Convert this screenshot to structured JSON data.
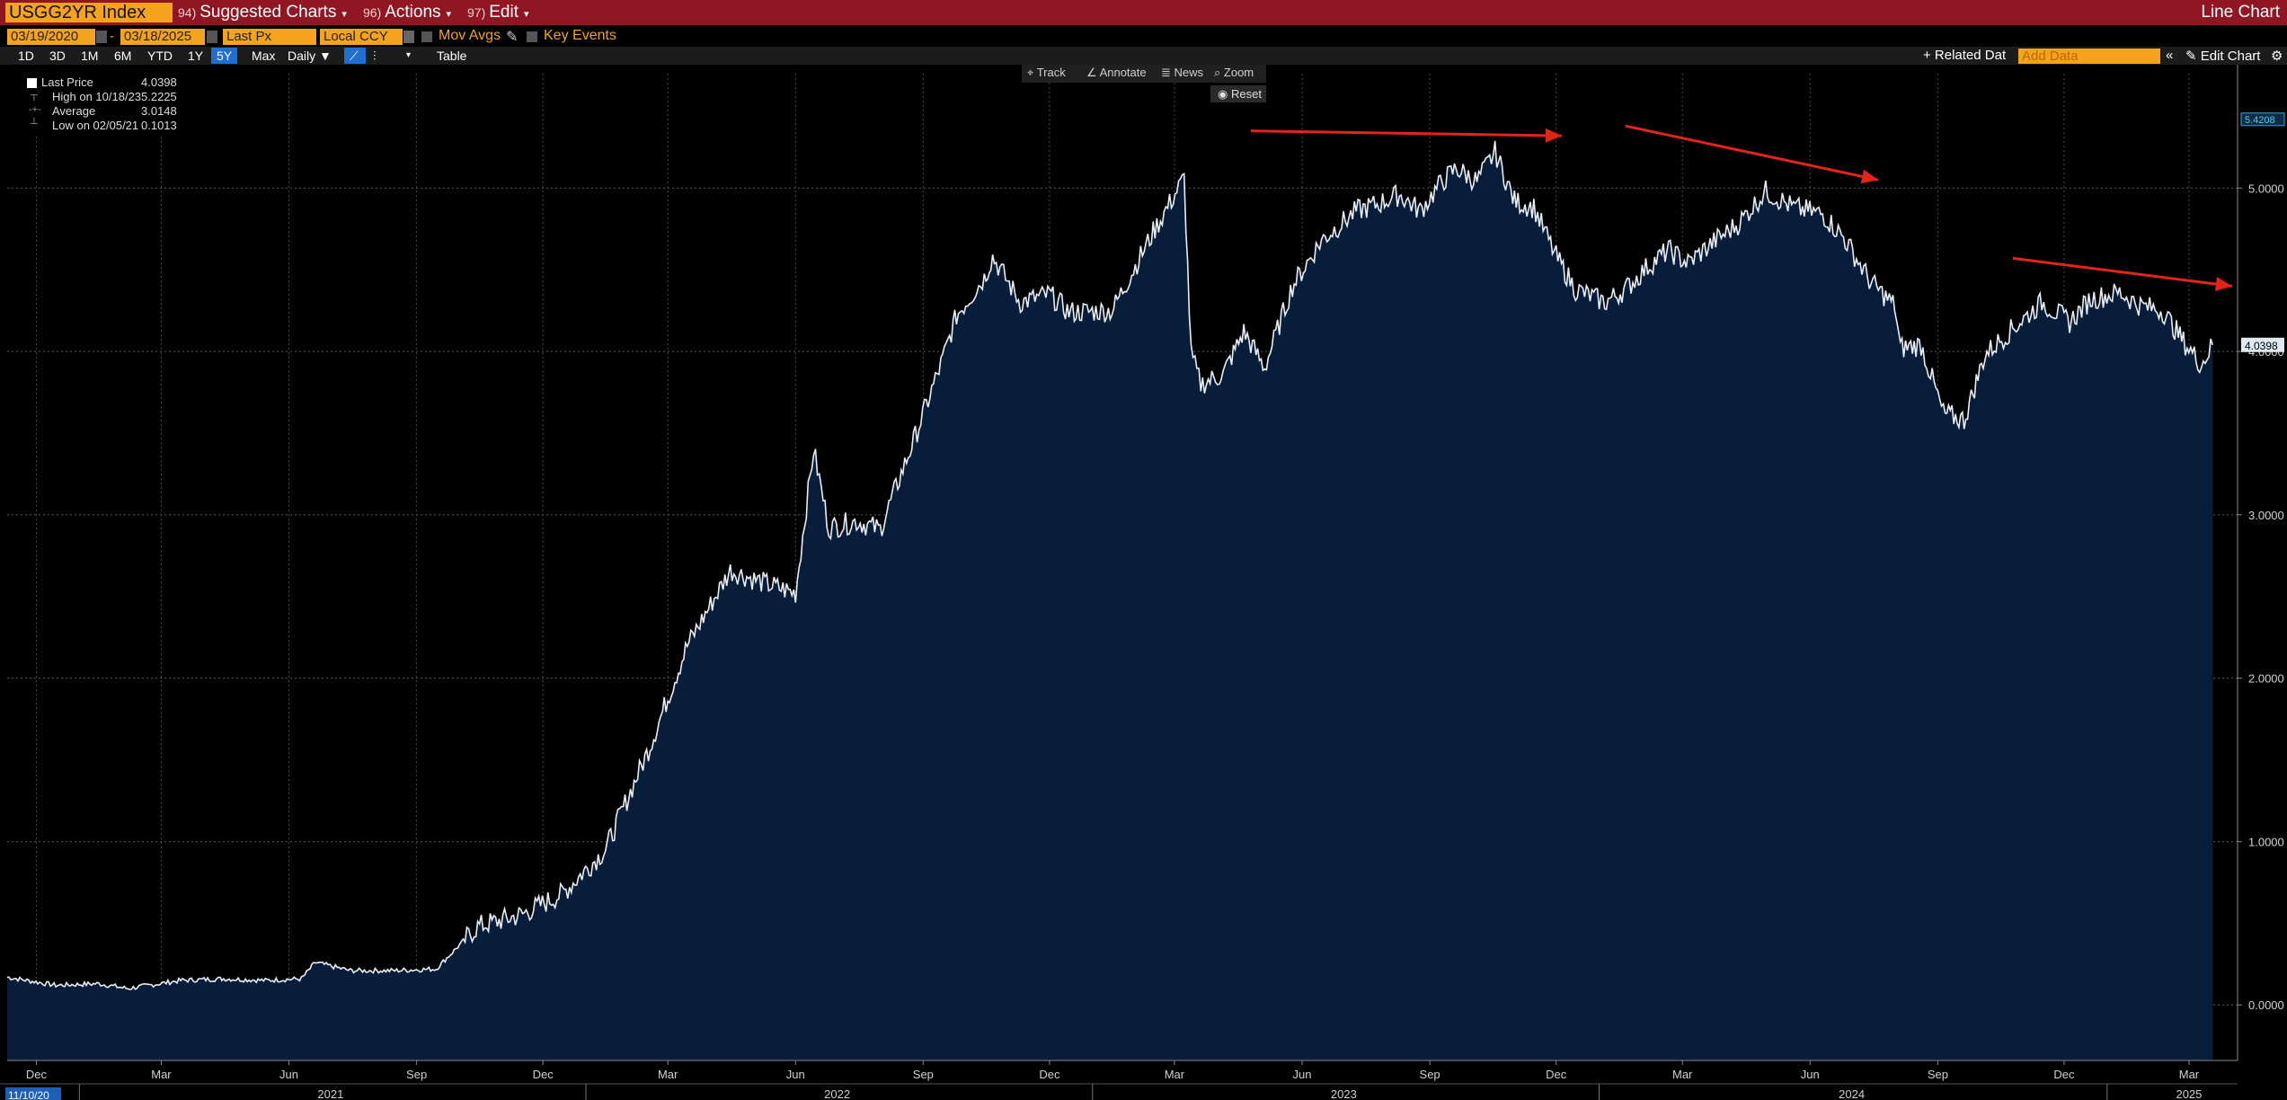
{
  "header": {
    "ticker": "USGG2YR Index",
    "menus": [
      {
        "num": "94)",
        "label": "Suggested Charts"
      },
      {
        "num": "96)",
        "label": "Actions"
      },
      {
        "num": "97)",
        "label": "Edit"
      }
    ],
    "chart_type_label": "Line Chart"
  },
  "controls": {
    "start_date": "03/19/2020",
    "end_date": "03/18/2025",
    "price_field": "Last Px",
    "currency": "Local CCY",
    "mov_avgs": "Mov Avgs",
    "key_events": "Key Events",
    "ranges": [
      "1D",
      "3D",
      "1M",
      "6M",
      "YTD",
      "1Y",
      "5Y",
      "Max"
    ],
    "active_range": "5Y",
    "frequency": "Daily",
    "table_label": "Table",
    "related_data": "+ Related Dat",
    "add_data_placeholder": "Add Data",
    "edit_chart": "Edit Chart"
  },
  "chart_tools": [
    "Track",
    "Annotate",
    "News",
    "Zoom"
  ],
  "reset_label": "Reset",
  "legend": {
    "rows": [
      {
        "label": "Last Price",
        "value": "4.0398"
      },
      {
        "label": "High on 10/18/23",
        "value": "5.2225"
      },
      {
        "label": "Average",
        "value": "3.0148"
      },
      {
        "label": "Low on 02/05/21",
        "value": "0.1013"
      }
    ]
  },
  "colors": {
    "topbar": "#8f1622",
    "accent_orange": "#f5a21c",
    "area_fill": "#071d3a",
    "line": "#e8eef5",
    "arrow": "#e3241b",
    "axis_text": "#d0d0d0",
    "price_tag": "#dfe9f2"
  },
  "chart_data": {
    "type": "area",
    "series": [
      {
        "x": [
          "2020-11-10",
          "2020-12-15",
          "2021-01-15",
          "2021-02-05",
          "2021-03-15",
          "2021-04-15",
          "2021-05-15",
          "2021-06-10",
          "2021-06-20",
          "2021-07-15",
          "2021-08-15",
          "2021-09-15",
          "2021-10-15",
          "2021-11-15",
          "2021-12-15",
          "2022-01-15",
          "2022-02-15",
          "2022-03-15",
          "2022-04-15",
          "2022-05-10",
          "2022-06-01",
          "2022-06-14",
          "2022-06-25",
          "2022-07-15",
          "2022-08-01",
          "2022-08-25",
          "2022-09-15",
          "2022-09-25",
          "2022-10-15",
          "2022-10-21",
          "2022-11-10",
          "2022-12-01",
          "2022-12-15",
          "2023-01-15",
          "2023-02-15",
          "2023-03-08",
          "2023-03-13",
          "2023-03-20",
          "2023-04-05",
          "2023-04-20",
          "2023-05-05",
          "2023-05-25",
          "2023-06-15",
          "2023-07-10",
          "2023-07-25",
          "2023-08-10",
          "2023-08-25",
          "2023-09-10",
          "2023-09-20",
          "2023-10-05",
          "2023-10-18",
          "2023-11-01",
          "2023-11-15",
          "2023-12-01",
          "2023-12-15",
          "2024-01-05",
          "2024-01-20",
          "2024-02-05",
          "2024-02-20",
          "2024-03-05",
          "2024-03-25",
          "2024-04-10",
          "2024-04-30",
          "2024-05-20",
          "2024-06-10",
          "2024-06-25",
          "2024-07-15",
          "2024-08-01",
          "2024-08-05",
          "2024-08-20",
          "2024-09-05",
          "2024-09-20",
          "2024-10-05",
          "2024-10-25",
          "2024-11-15",
          "2024-12-05",
          "2024-12-20",
          "2025-01-10",
          "2025-01-25",
          "2025-02-10",
          "2025-02-25",
          "2025-03-10",
          "2025-03-18"
        ],
        "y": [
          0.17,
          0.12,
          0.13,
          0.1,
          0.15,
          0.16,
          0.15,
          0.16,
          0.26,
          0.21,
          0.21,
          0.22,
          0.48,
          0.55,
          0.68,
          0.95,
          1.56,
          2.2,
          2.66,
          2.58,
          2.52,
          3.4,
          2.92,
          2.96,
          2.91,
          3.45,
          3.95,
          4.22,
          4.45,
          4.58,
          4.3,
          4.35,
          4.24,
          4.25,
          4.75,
          5.06,
          3.98,
          3.8,
          3.86,
          4.12,
          3.9,
          4.4,
          4.68,
          4.86,
          4.9,
          4.96,
          4.86,
          5.04,
          5.12,
          5.04,
          5.22,
          4.92,
          4.88,
          4.58,
          4.38,
          4.3,
          4.38,
          4.52,
          4.62,
          4.54,
          4.68,
          4.78,
          4.98,
          4.88,
          4.84,
          4.7,
          4.42,
          4.28,
          4.02,
          4.04,
          3.62,
          3.58,
          3.98,
          4.14,
          4.3,
          4.18,
          4.32,
          4.36,
          4.28,
          4.25,
          4.06,
          3.92,
          4.04
        ]
      }
    ],
    "ylim": [
      -0.34,
      5.7
    ],
    "yticks": [
      "0.0000",
      "1.0000",
      "2.0000",
      "3.0000",
      "4.0000",
      "5.0000"
    ],
    "last_value_label": "4.0398",
    "top_value_label": "5.4208",
    "xlim": [
      "2020-11-10",
      "2025-04-05"
    ],
    "months": [
      {
        "label": "Dec",
        "date": "2020-12-01"
      },
      {
        "label": "Mar",
        "date": "2021-03-01"
      },
      {
        "label": "Jun",
        "date": "2021-06-01"
      },
      {
        "label": "Sep",
        "date": "2021-09-01"
      },
      {
        "label": "Dec",
        "date": "2021-12-01"
      },
      {
        "label": "Mar",
        "date": "2022-03-01"
      },
      {
        "label": "Jun",
        "date": "2022-06-01"
      },
      {
        "label": "Sep",
        "date": "2022-09-01"
      },
      {
        "label": "Dec",
        "date": "2022-12-01"
      },
      {
        "label": "Mar",
        "date": "2023-03-01"
      },
      {
        "label": "Jun",
        "date": "2023-06-01"
      },
      {
        "label": "Sep",
        "date": "2023-09-01"
      },
      {
        "label": "Dec",
        "date": "2023-12-01"
      },
      {
        "label": "Mar",
        "date": "2024-03-01"
      },
      {
        "label": "Jun",
        "date": "2024-06-01"
      },
      {
        "label": "Sep",
        "date": "2024-09-01"
      },
      {
        "label": "Dec",
        "date": "2024-12-01"
      },
      {
        "label": "Mar",
        "date": "2025-03-01"
      }
    ],
    "years": [
      {
        "label": "2021",
        "date": "2021-07-01"
      },
      {
        "label": "2022",
        "date": "2022-07-01"
      },
      {
        "label": "2023",
        "date": "2023-07-01"
      },
      {
        "label": "2024",
        "date": "2024-07-01"
      },
      {
        "label": "2025",
        "date": "2025-03-01"
      }
    ],
    "year_dividers": [
      "2021-01-01",
      "2022-01-01",
      "2023-01-01",
      "2024-01-01",
      "2025-01-01"
    ],
    "start_label": "11/10/20",
    "annotations": [
      {
        "type": "arrow",
        "from": {
          "date": "2023-04-25",
          "y": 5.35
        },
        "to": {
          "date": "2023-12-05",
          "y": 5.32
        }
      },
      {
        "type": "arrow",
        "from": {
          "date": "2024-01-20",
          "y": 5.38
        },
        "to": {
          "date": "2024-07-20",
          "y": 5.05
        }
      },
      {
        "type": "arrow",
        "from": {
          "date": "2024-10-25",
          "y": 4.57
        },
        "to": {
          "date": "2025-04-01",
          "y": 4.4
        }
      }
    ],
    "grid": true
  }
}
